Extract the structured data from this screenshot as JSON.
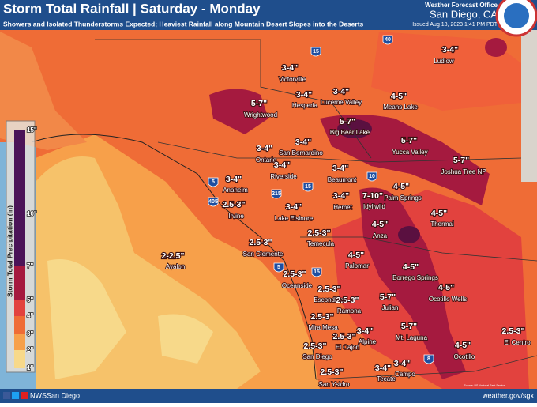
{
  "header": {
    "title": "Storm Total Rainfall | Saturday - Monday",
    "subtitle": "Showers and Isolated Thunderstorms Expected; Heaviest Rainfall along Mountain Desert Slopes into the Deserts",
    "office": "Weather Forecast Office",
    "location": "San Diego, CA",
    "issued": "Issued Aug 18, 2023 1:41 PM PDT"
  },
  "legend": {
    "title": "Storm Total Precipitation (in)",
    "labels": [
      "15\"",
      "10\"",
      "7\"",
      "5\"",
      "4\"",
      "3\"",
      "2\"",
      "1\""
    ]
  },
  "places": [
    {
      "name": "Ludlow",
      "amount": "3-4\""
    },
    {
      "name": "Victorville",
      "amount": "3-4\""
    },
    {
      "name": "Hesperia",
      "amount": "3-4\""
    },
    {
      "name": "Lucerne Valley",
      "amount": "3-4\""
    },
    {
      "name": "Means Lake",
      "amount": "4-5\""
    },
    {
      "name": "Wrightwood",
      "amount": "5-7\""
    },
    {
      "name": "Big Bear Lake",
      "amount": "5-7\""
    },
    {
      "name": "Yucca Valley",
      "amount": "5-7\""
    },
    {
      "name": "San Bernardino",
      "amount": "3-4\""
    },
    {
      "name": "Ontario",
      "amount": "3-4\""
    },
    {
      "name": "Riverside",
      "amount": "3-4\""
    },
    {
      "name": "Joshua Tree NP",
      "amount": "5-7\""
    },
    {
      "name": "Beaumont",
      "amount": "3-4\""
    },
    {
      "name": "Anaheim",
      "amount": "3-4\""
    },
    {
      "name": "Palm Springs",
      "amount": "4-5\""
    },
    {
      "name": "Irvine",
      "amount": "2.5-3\""
    },
    {
      "name": "Hemet",
      "amount": "3-4\""
    },
    {
      "name": "Idyllwild",
      "amount": "7-10\""
    },
    {
      "name": "Lake Elsinore",
      "amount": "3-4\""
    },
    {
      "name": "Thermal",
      "amount": "4-5\""
    },
    {
      "name": "Anza",
      "amount": "4-5\""
    },
    {
      "name": "Temecula",
      "amount": "2.5-3\""
    },
    {
      "name": "San Clemente",
      "amount": "2.5-3\""
    },
    {
      "name": "Avalon",
      "amount": "2-2.5\""
    },
    {
      "name": "Palomar",
      "amount": "4-5\""
    },
    {
      "name": "Borrego Springs",
      "amount": "4-5\""
    },
    {
      "name": "Oceanside",
      "amount": "2.5-3\""
    },
    {
      "name": "Ocotillo Wells",
      "amount": "4-5\""
    },
    {
      "name": "Escondido",
      "amount": "2.5-3\""
    },
    {
      "name": "Julian",
      "amount": "5-7\""
    },
    {
      "name": "Ramona",
      "amount": "2.5-3\""
    },
    {
      "name": "Mira Mesa",
      "amount": "2.5-3\""
    },
    {
      "name": "Mt. Laguna",
      "amount": "5-7\""
    },
    {
      "name": "Alpine",
      "amount": "3-4\""
    },
    {
      "name": "El Cajon",
      "amount": "2.5-3\""
    },
    {
      "name": "El Centro",
      "amount": "2.5-3\""
    },
    {
      "name": "Ocotillo",
      "amount": "4-5\""
    },
    {
      "name": "San Diego",
      "amount": "2.5-3\""
    },
    {
      "name": "Campo",
      "amount": "3-4\""
    },
    {
      "name": "Tecate",
      "amount": "3-4\""
    },
    {
      "name": "San Ysidro",
      "amount": "2.5-3\""
    }
  ],
  "highways": [
    "40",
    "15",
    "5",
    "10",
    "215",
    "15",
    "405",
    "5",
    "15",
    "8"
  ],
  "footer": {
    "social": "NWSSan Diego",
    "website": "weather.gov/sgx",
    "credit": "Source: US National Park Service"
  }
}
